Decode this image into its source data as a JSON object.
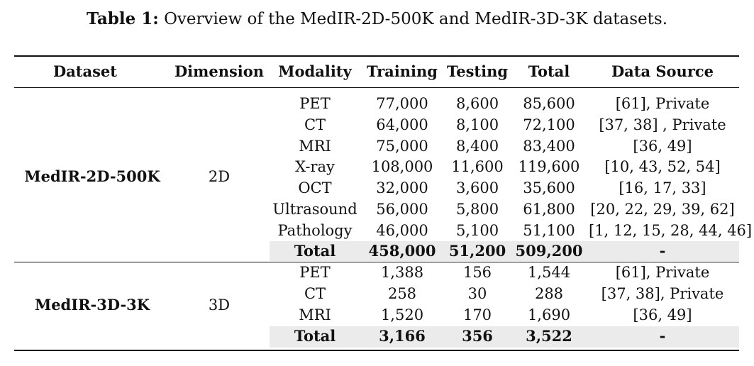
{
  "caption": {
    "label": "Table 1:",
    "text": "Overview of the MedIR-2D-500K and MedIR-3D-3K datasets."
  },
  "headers": [
    "Dataset",
    "Dimension",
    "Modality",
    "Training",
    "Testing",
    "Total",
    "Data Source"
  ],
  "groups": [
    {
      "name": "MedIR-2D-500K",
      "dimension": "2D",
      "rows": [
        {
          "modality": "PET",
          "training": "77,000",
          "testing": "8,600",
          "total": "85,600",
          "source": "[61], Private"
        },
        {
          "modality": "CT",
          "training": "64,000",
          "testing": "8,100",
          "total": "72,100",
          "source": "[37, 38] , Private"
        },
        {
          "modality": "MRI",
          "training": "75,000",
          "testing": "8,400",
          "total": "83,400",
          "source": "[36, 49]"
        },
        {
          "modality": "X-ray",
          "training": "108,000",
          "testing": "11,600",
          "total": "119,600",
          "source": "[10, 43, 52, 54]"
        },
        {
          "modality": "OCT",
          "training": "32,000",
          "testing": "3,600",
          "total": "35,600",
          "source": "[16, 17, 33]"
        },
        {
          "modality": "Ultrasound",
          "training": "56,000",
          "testing": "5,800",
          "total": "61,800",
          "source": "[20, 22, 29, 39, 62]"
        },
        {
          "modality": "Pathology",
          "training": "46,000",
          "testing": "5,100",
          "total": "51,100",
          "source": "[1, 12, 15, 28, 44, 46]"
        }
      ],
      "total_row": {
        "modality": "Total",
        "training": "458,000",
        "testing": "51,200",
        "total": "509,200",
        "source": "-"
      }
    },
    {
      "name": "MedIR-3D-3K",
      "dimension": "3D",
      "rows": [
        {
          "modality": "PET",
          "training": "1,388",
          "testing": "156",
          "total": "1,544",
          "source": "[61], Private"
        },
        {
          "modality": "CT",
          "training": "258",
          "testing": "30",
          "total": "288",
          "source": "[37, 38], Private"
        },
        {
          "modality": "MRI",
          "training": "1,520",
          "testing": "170",
          "total": "1,690",
          "source": "[36, 49]"
        }
      ],
      "total_row": {
        "modality": "Total",
        "training": "3,166",
        "testing": "356",
        "total": "3,522",
        "source": "-"
      }
    }
  ]
}
